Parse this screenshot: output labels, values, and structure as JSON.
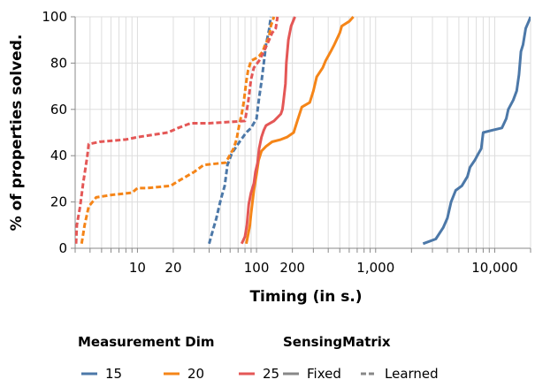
{
  "chart_data": {
    "type": "line",
    "title": "",
    "xlabel": "Timing (in s.)",
    "ylabel": "% of properties solved.",
    "x_scale": "log",
    "xlim": [
      3,
      20000
    ],
    "ylim": [
      0,
      100
    ],
    "grid": true,
    "x_tick_labels": [
      {
        "value": 10,
        "label": "10"
      },
      {
        "value": 20,
        "label": "20"
      },
      {
        "value": 100,
        "label": "100"
      },
      {
        "value": 200,
        "label": "200"
      },
      {
        "value": 1000,
        "label": "1,000"
      },
      {
        "value": 10000,
        "label": "10,000"
      }
    ],
    "y_ticks": [
      0,
      20,
      40,
      60,
      80,
      100
    ],
    "legend": {
      "placement": "bottom",
      "groups": [
        {
          "title": "Measurement Dim",
          "entries": [
            {
              "label": "15",
              "color": "#4c78a8",
              "dash": "solid"
            },
            {
              "label": "20",
              "color": "#f58518",
              "dash": "solid"
            },
            {
              "label": "25",
              "color": "#e45756",
              "dash": "solid"
            }
          ]
        },
        {
          "title": "SensingMatrix",
          "entries": [
            {
              "label": "Fixed",
              "color": "#888888",
              "dash": "solid"
            },
            {
              "label": "Learned",
              "color": "#888888",
              "dash": "dashed"
            }
          ]
        }
      ]
    },
    "series": [
      {
        "dim": "15",
        "matrix": "Fixed",
        "color": "#4c78a8",
        "dash": "solid",
        "points": [
          [
            2500,
            2
          ],
          [
            3200,
            4
          ],
          [
            3700,
            9
          ],
          [
            4000,
            13
          ],
          [
            4300,
            20
          ],
          [
            4700,
            25
          ],
          [
            5300,
            27
          ],
          [
            5900,
            31
          ],
          [
            6200,
            35
          ],
          [
            6800,
            38
          ],
          [
            7300,
            41
          ],
          [
            7700,
            43
          ],
          [
            8000,
            50
          ],
          [
            9500,
            51
          ],
          [
            11500,
            52
          ],
          [
            12500,
            56
          ],
          [
            13000,
            60
          ],
          [
            14300,
            64
          ],
          [
            15300,
            68
          ],
          [
            16000,
            75
          ],
          [
            16600,
            85
          ],
          [
            17300,
            88
          ],
          [
            18200,
            95
          ],
          [
            19300,
            98
          ],
          [
            20000,
            100
          ]
        ]
      },
      {
        "dim": "15",
        "matrix": "Learned",
        "color": "#4c78a8",
        "dash": "dashed",
        "points": [
          [
            40,
            2
          ],
          [
            42,
            6
          ],
          [
            46,
            13
          ],
          [
            50,
            21
          ],
          [
            54,
            27
          ],
          [
            57,
            36
          ],
          [
            62,
            41
          ],
          [
            72,
            46
          ],
          [
            82,
            50
          ],
          [
            90,
            52
          ],
          [
            100,
            56
          ],
          [
            105,
            65
          ],
          [
            110,
            72
          ],
          [
            115,
            80
          ],
          [
            120,
            88
          ],
          [
            127,
            94
          ],
          [
            132,
            100
          ]
        ]
      },
      {
        "dim": "20",
        "matrix": "Fixed",
        "color": "#f58518",
        "dash": "solid",
        "points": [
          [
            82,
            2
          ],
          [
            85,
            6
          ],
          [
            88,
            10
          ],
          [
            90,
            15
          ],
          [
            95,
            25
          ],
          [
            100,
            32
          ],
          [
            104,
            38
          ],
          [
            110,
            42
          ],
          [
            120,
            44
          ],
          [
            135,
            46
          ],
          [
            160,
            47
          ],
          [
            180,
            48
          ],
          [
            205,
            50
          ],
          [
            220,
            55
          ],
          [
            240,
            61
          ],
          [
            280,
            63
          ],
          [
            300,
            68
          ],
          [
            320,
            74
          ],
          [
            360,
            78
          ],
          [
            380,
            81
          ],
          [
            420,
            85
          ],
          [
            450,
            88
          ],
          [
            500,
            93
          ],
          [
            520,
            96
          ],
          [
            600,
            98
          ],
          [
            650,
            100
          ]
        ]
      },
      {
        "dim": "20",
        "matrix": "Learned",
        "color": "#f58518",
        "dash": "dashed",
        "points": [
          [
            3.4,
            2
          ],
          [
            3.6,
            10
          ],
          [
            3.9,
            18
          ],
          [
            4.5,
            22
          ],
          [
            6,
            23
          ],
          [
            9,
            24
          ],
          [
            10,
            26
          ],
          [
            12,
            26
          ],
          [
            19,
            27
          ],
          [
            22,
            29
          ],
          [
            30,
            33
          ],
          [
            36,
            36
          ],
          [
            55,
            37
          ],
          [
            64,
            43
          ],
          [
            68,
            47
          ],
          [
            72,
            54
          ],
          [
            75,
            58
          ],
          [
            78,
            63
          ],
          [
            82,
            72
          ],
          [
            85,
            77
          ],
          [
            90,
            81
          ],
          [
            98,
            82
          ],
          [
            105,
            83
          ],
          [
            113,
            85
          ],
          [
            118,
            88
          ],
          [
            127,
            91
          ],
          [
            132,
            96
          ],
          [
            140,
            100
          ]
        ]
      },
      {
        "dim": "25",
        "matrix": "Fixed",
        "color": "#e45756",
        "dash": "solid",
        "points": [
          [
            75,
            2
          ],
          [
            80,
            5
          ],
          [
            83,
            10
          ],
          [
            86,
            19
          ],
          [
            90,
            24
          ],
          [
            95,
            28
          ],
          [
            98,
            33
          ],
          [
            102,
            37
          ],
          [
            105,
            43
          ],
          [
            110,
            48
          ],
          [
            115,
            51
          ],
          [
            120,
            53
          ],
          [
            140,
            55
          ],
          [
            160,
            58
          ],
          [
            165,
            60
          ],
          [
            168,
            63
          ],
          [
            175,
            71
          ],
          [
            178,
            80
          ],
          [
            185,
            90
          ],
          [
            195,
            96
          ],
          [
            210,
            100
          ]
        ]
      },
      {
        "dim": "25",
        "matrix": "Learned",
        "color": "#e45756",
        "dash": "dashed",
        "points": [
          [
            3.05,
            2
          ],
          [
            3.1,
            10
          ],
          [
            3.3,
            18
          ],
          [
            3.5,
            28
          ],
          [
            3.8,
            40
          ],
          [
            3.9,
            45
          ],
          [
            4.8,
            46
          ],
          [
            8,
            47
          ],
          [
            10,
            48
          ],
          [
            18,
            50
          ],
          [
            22,
            52
          ],
          [
            28,
            54
          ],
          [
            40,
            54
          ],
          [
            80,
            55
          ],
          [
            85,
            63
          ],
          [
            90,
            73
          ],
          [
            95,
            78
          ],
          [
            105,
            81
          ],
          [
            115,
            85
          ],
          [
            125,
            89
          ],
          [
            135,
            93
          ],
          [
            145,
            95
          ],
          [
            150,
            100
          ]
        ]
      }
    ]
  }
}
